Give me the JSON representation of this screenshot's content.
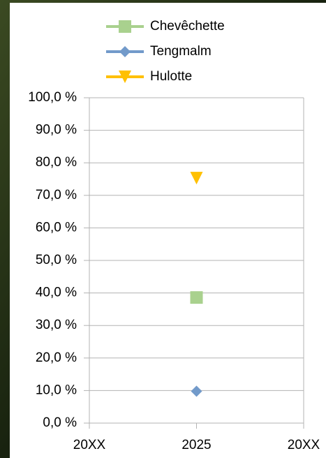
{
  "chart_data": {
    "type": "line",
    "categories": [
      "20XX",
      "2025",
      "20XX"
    ],
    "series": [
      {
        "name": "Chevêchette",
        "color": "#a9d18e",
        "marker": "square",
        "values": [
          null,
          38.6,
          null
        ]
      },
      {
        "name": "Tengmalm",
        "color": "#729aca",
        "marker": "diamond",
        "values": [
          null,
          9.8,
          null
        ]
      },
      {
        "name": "Hulotte",
        "color": "#ffc000",
        "marker": "triangle-down",
        "values": [
          null,
          75.3,
          null
        ]
      }
    ],
    "ylim": [
      0,
      100
    ],
    "yticks": [
      {
        "value": 0,
        "label": "0,0 %"
      },
      {
        "value": 10,
        "label": "10,0 %"
      },
      {
        "value": 20,
        "label": "20,0 %"
      },
      {
        "value": 30,
        "label": "30,0 %"
      },
      {
        "value": 40,
        "label": "40,0 %"
      },
      {
        "value": 50,
        "label": "50,0 %"
      },
      {
        "value": 60,
        "label": "60,0 %"
      },
      {
        "value": 70,
        "label": "70,0 %"
      },
      {
        "value": 80,
        "label": "80,0 %"
      },
      {
        "value": 90,
        "label": "90,0 %"
      },
      {
        "value": 100,
        "label": "100,0 %"
      }
    ],
    "grid": true,
    "legend": "top"
  }
}
